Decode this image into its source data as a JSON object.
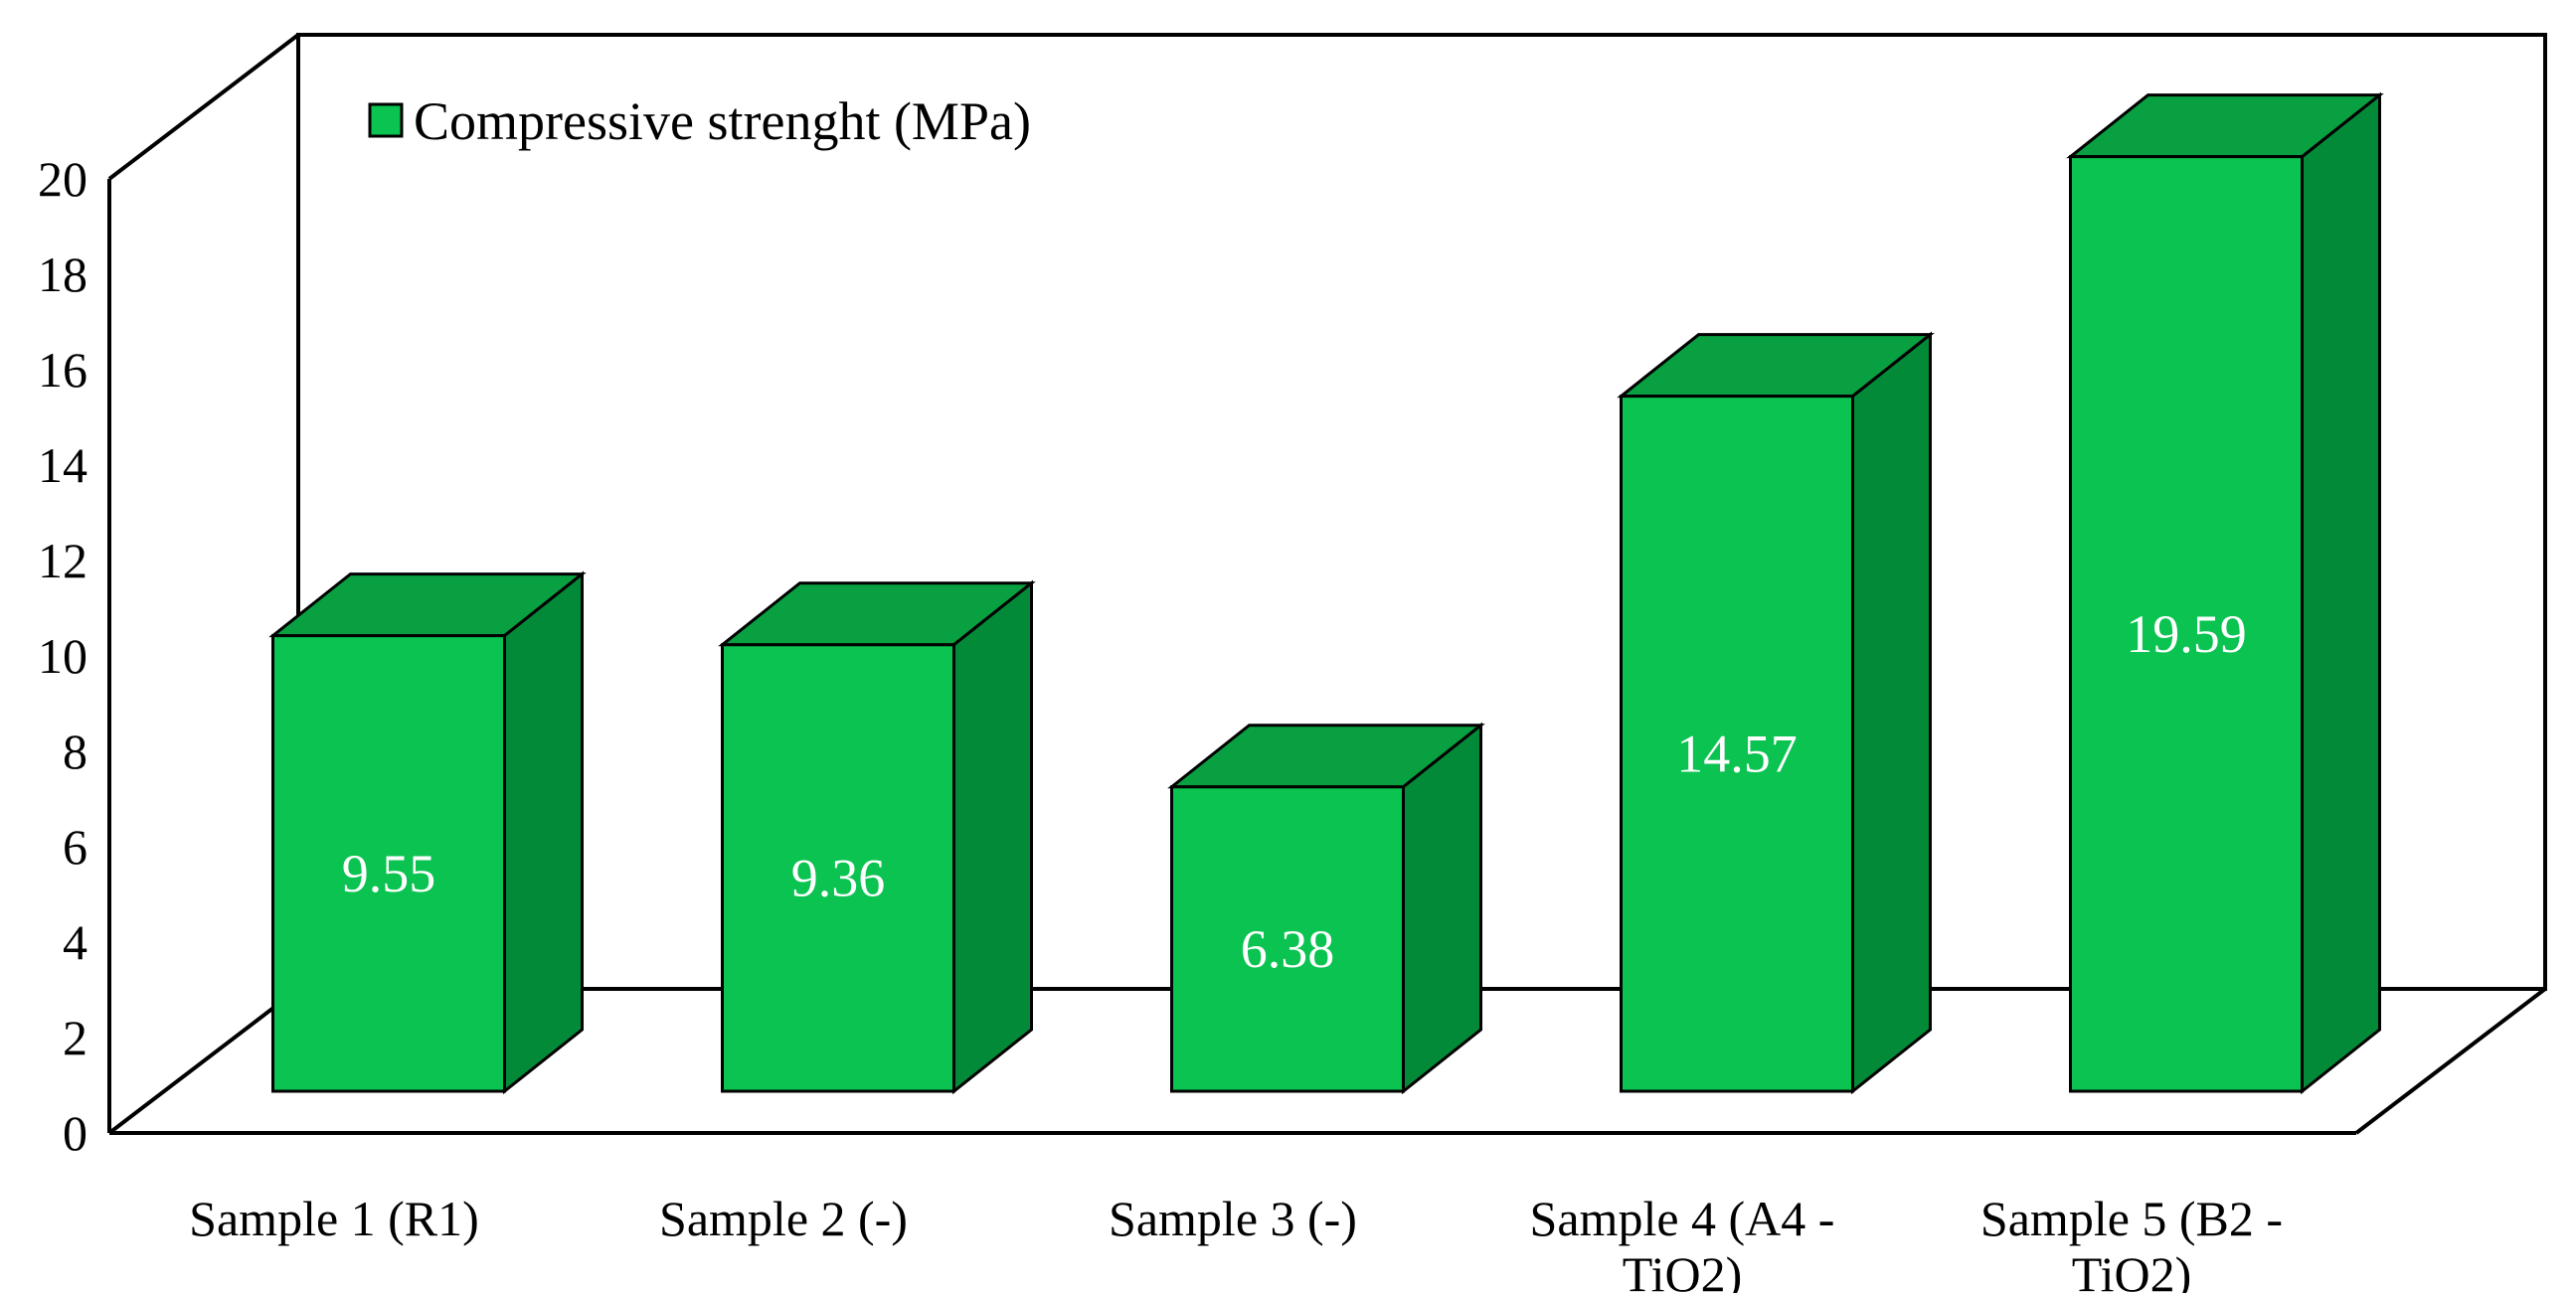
{
  "chart_data": {
    "type": "bar",
    "projection": "3d",
    "title": "",
    "legend": {
      "label": "Compressive strenght (MPa)",
      "position": "top-left-inside",
      "swatch_color": "#0AC350"
    },
    "series": [
      {
        "name": "Compressive strenght (MPa)",
        "values": [
          9.55,
          9.36,
          6.38,
          14.57,
          19.59
        ]
      }
    ],
    "value_labels": [
      "9.55",
      "9.36",
      "6.38",
      "14.57",
      "19.59"
    ],
    "categories": [
      "Sample 1 (R1)",
      "Sample 2 (-)",
      "Sample 3 (-)",
      "Sample 4 (A4 - TiO2)",
      "Sample 5 (B2 - TiO2)"
    ],
    "category_label_lines": [
      [
        "Sample 1 (R1)"
      ],
      [
        "Sample 2 (-)"
      ],
      [
        "Sample 3 (-)"
      ],
      [
        "Sample 4 (A4 -",
        "TiO2)"
      ],
      [
        "Sample 5 (B2 -",
        "TiO2)"
      ]
    ],
    "xlabel": "",
    "ylabel": "",
    "ylim": [
      0,
      20
    ],
    "ytick_step": 2,
    "yticks": [
      "0",
      "2",
      "4",
      "6",
      "8",
      "10",
      "12",
      "14",
      "16",
      "18",
      "20"
    ],
    "grid": false,
    "colors": {
      "bar_front": "#0AC350",
      "bar_top": "#08A040",
      "bar_side": "#038A38",
      "outline": "#000000",
      "frame": "#000000",
      "value_label_text": "#FFFFFF",
      "axis_text": "#000000",
      "background": "#FFFFFF"
    }
  }
}
